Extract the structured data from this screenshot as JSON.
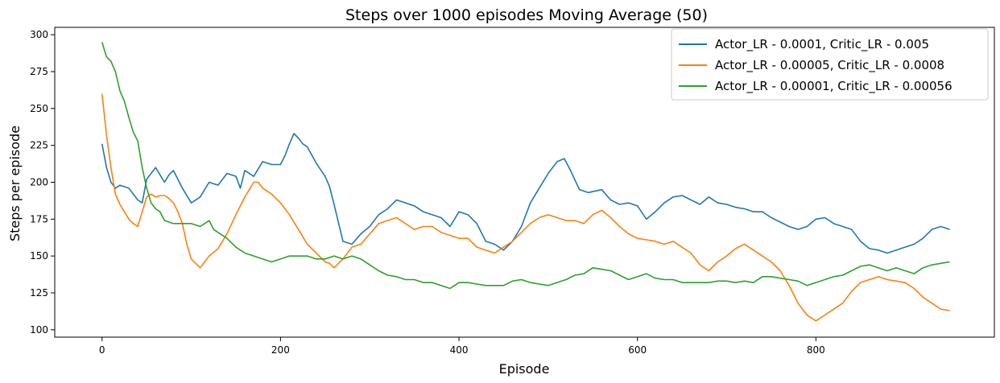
{
  "chart_data": {
    "type": "line",
    "title": "Steps over 1000 episodes Moving Average (50)",
    "xlabel": "Episode",
    "ylabel": "Steps per episode",
    "xlim": [
      -53,
      1000
    ],
    "ylim": [
      95,
      305
    ],
    "xticks": [
      0,
      200,
      400,
      600,
      800
    ],
    "yticks": [
      100,
      125,
      150,
      175,
      200,
      225,
      250,
      275,
      300
    ],
    "grid": false,
    "legend_position": "top-right",
    "series": [
      {
        "name": "Actor_LR - 0.0001, Critic_LR - 0.005",
        "color": "#1f77b4",
        "points": [
          [
            0,
            226
          ],
          [
            5,
            210
          ],
          [
            10,
            200
          ],
          [
            15,
            196
          ],
          [
            20,
            198
          ],
          [
            30,
            196
          ],
          [
            40,
            188
          ],
          [
            45,
            186
          ],
          [
            50,
            202
          ],
          [
            55,
            206
          ],
          [
            60,
            210
          ],
          [
            65,
            205
          ],
          [
            70,
            200
          ],
          [
            75,
            205
          ],
          [
            80,
            208
          ],
          [
            90,
            196
          ],
          [
            100,
            186
          ],
          [
            110,
            190
          ],
          [
            120,
            200
          ],
          [
            130,
            198
          ],
          [
            140,
            206
          ],
          [
            150,
            204
          ],
          [
            155,
            196
          ],
          [
            160,
            208
          ],
          [
            170,
            204
          ],
          [
            180,
            214
          ],
          [
            190,
            212
          ],
          [
            200,
            212
          ],
          [
            205,
            218
          ],
          [
            210,
            226
          ],
          [
            215,
            233
          ],
          [
            220,
            230
          ],
          [
            225,
            226
          ],
          [
            230,
            224
          ],
          [
            240,
            213
          ],
          [
            250,
            204
          ],
          [
            255,
            197
          ],
          [
            260,
            185
          ],
          [
            270,
            160
          ],
          [
            280,
            158
          ],
          [
            290,
            165
          ],
          [
            300,
            170
          ],
          [
            310,
            178
          ],
          [
            320,
            182
          ],
          [
            330,
            188
          ],
          [
            340,
            186
          ],
          [
            350,
            184
          ],
          [
            360,
            180
          ],
          [
            370,
            178
          ],
          [
            380,
            176
          ],
          [
            390,
            170
          ],
          [
            400,
            180
          ],
          [
            410,
            178
          ],
          [
            420,
            172
          ],
          [
            430,
            160
          ],
          [
            440,
            158
          ],
          [
            450,
            154
          ],
          [
            460,
            160
          ],
          [
            470,
            170
          ],
          [
            480,
            186
          ],
          [
            490,
            196
          ],
          [
            500,
            206
          ],
          [
            510,
            214
          ],
          [
            518,
            216
          ],
          [
            525,
            208
          ],
          [
            535,
            195
          ],
          [
            545,
            193
          ],
          [
            560,
            195
          ],
          [
            570,
            188
          ],
          [
            580,
            185
          ],
          [
            590,
            186
          ],
          [
            600,
            184
          ],
          [
            610,
            175
          ],
          [
            620,
            180
          ],
          [
            630,
            186
          ],
          [
            640,
            190
          ],
          [
            650,
            191
          ],
          [
            660,
            188
          ],
          [
            670,
            185
          ],
          [
            680,
            190
          ],
          [
            690,
            186
          ],
          [
            700,
            185
          ],
          [
            710,
            183
          ],
          [
            720,
            182
          ],
          [
            730,
            180
          ],
          [
            740,
            180
          ],
          [
            750,
            176
          ],
          [
            760,
            173
          ],
          [
            770,
            170
          ],
          [
            780,
            168
          ],
          [
            790,
            170
          ],
          [
            800,
            175
          ],
          [
            810,
            176
          ],
          [
            820,
            172
          ],
          [
            830,
            170
          ],
          [
            840,
            168
          ],
          [
            850,
            160
          ],
          [
            860,
            155
          ],
          [
            870,
            154
          ],
          [
            880,
            152
          ],
          [
            890,
            154
          ],
          [
            900,
            156
          ],
          [
            910,
            158
          ],
          [
            920,
            162
          ],
          [
            930,
            168
          ],
          [
            940,
            170
          ],
          [
            950,
            168
          ]
        ]
      },
      {
        "name": "Actor_LR - 0.00005, Critic_LR - 0.0008",
        "color": "#ff7f0e",
        "points": [
          [
            0,
            260
          ],
          [
            5,
            232
          ],
          [
            10,
            210
          ],
          [
            15,
            192
          ],
          [
            20,
            185
          ],
          [
            25,
            180
          ],
          [
            30,
            175
          ],
          [
            35,
            172
          ],
          [
            40,
            170
          ],
          [
            45,
            180
          ],
          [
            50,
            190
          ],
          [
            55,
            192
          ],
          [
            60,
            190
          ],
          [
            65,
            191
          ],
          [
            70,
            191
          ],
          [
            75,
            189
          ],
          [
            80,
            186
          ],
          [
            85,
            180
          ],
          [
            90,
            172
          ],
          [
            95,
            158
          ],
          [
            100,
            148
          ],
          [
            110,
            142
          ],
          [
            120,
            150
          ],
          [
            130,
            155
          ],
          [
            140,
            165
          ],
          [
            150,
            178
          ],
          [
            160,
            190
          ],
          [
            170,
            200
          ],
          [
            175,
            200
          ],
          [
            180,
            196
          ],
          [
            190,
            192
          ],
          [
            200,
            186
          ],
          [
            210,
            178
          ],
          [
            220,
            168
          ],
          [
            230,
            158
          ],
          [
            240,
            152
          ],
          [
            250,
            146
          ],
          [
            255,
            145
          ],
          [
            260,
            142
          ],
          [
            270,
            148
          ],
          [
            280,
            156
          ],
          [
            290,
            158
          ],
          [
            300,
            165
          ],
          [
            310,
            172
          ],
          [
            320,
            174
          ],
          [
            330,
            176
          ],
          [
            340,
            172
          ],
          [
            350,
            168
          ],
          [
            360,
            170
          ],
          [
            370,
            170
          ],
          [
            380,
            166
          ],
          [
            390,
            164
          ],
          [
            400,
            162
          ],
          [
            410,
            162
          ],
          [
            420,
            156
          ],
          [
            430,
            154
          ],
          [
            440,
            152
          ],
          [
            450,
            156
          ],
          [
            460,
            160
          ],
          [
            470,
            166
          ],
          [
            480,
            172
          ],
          [
            490,
            176
          ],
          [
            500,
            178
          ],
          [
            510,
            176
          ],
          [
            520,
            174
          ],
          [
            530,
            174
          ],
          [
            540,
            172
          ],
          [
            550,
            178
          ],
          [
            560,
            181
          ],
          [
            570,
            176
          ],
          [
            580,
            170
          ],
          [
            590,
            165
          ],
          [
            600,
            162
          ],
          [
            610,
            161
          ],
          [
            620,
            160
          ],
          [
            630,
            158
          ],
          [
            640,
            160
          ],
          [
            650,
            156
          ],
          [
            660,
            152
          ],
          [
            670,
            144
          ],
          [
            680,
            140
          ],
          [
            690,
            146
          ],
          [
            700,
            150
          ],
          [
            710,
            155
          ],
          [
            720,
            158
          ],
          [
            730,
            154
          ],
          [
            740,
            150
          ],
          [
            750,
            146
          ],
          [
            760,
            140
          ],
          [
            770,
            130
          ],
          [
            780,
            118
          ],
          [
            790,
            110
          ],
          [
            800,
            106
          ],
          [
            810,
            110
          ],
          [
            820,
            114
          ],
          [
            830,
            118
          ],
          [
            840,
            126
          ],
          [
            850,
            132
          ],
          [
            860,
            134
          ],
          [
            870,
            136
          ],
          [
            880,
            134
          ],
          [
            890,
            133
          ],
          [
            900,
            132
          ],
          [
            910,
            128
          ],
          [
            920,
            122
          ],
          [
            930,
            118
          ],
          [
            940,
            114
          ],
          [
            950,
            113
          ]
        ]
      },
      {
        "name": "Actor_LR - 0.00001, Critic_LR - 0.00056",
        "color": "#2ca02c",
        "points": [
          [
            0,
            295
          ],
          [
            5,
            285
          ],
          [
            10,
            282
          ],
          [
            15,
            275
          ],
          [
            20,
            262
          ],
          [
            25,
            255
          ],
          [
            30,
            244
          ],
          [
            35,
            234
          ],
          [
            40,
            228
          ],
          [
            45,
            210
          ],
          [
            50,
            196
          ],
          [
            55,
            186
          ],
          [
            60,
            182
          ],
          [
            65,
            180
          ],
          [
            70,
            174
          ],
          [
            80,
            172
          ],
          [
            90,
            172
          ],
          [
            100,
            172
          ],
          [
            110,
            170
          ],
          [
            120,
            174
          ],
          [
            125,
            168
          ],
          [
            130,
            166
          ],
          [
            140,
            162
          ],
          [
            150,
            156
          ],
          [
            160,
            152
          ],
          [
            170,
            150
          ],
          [
            180,
            148
          ],
          [
            190,
            146
          ],
          [
            200,
            148
          ],
          [
            210,
            150
          ],
          [
            220,
            150
          ],
          [
            230,
            150
          ],
          [
            240,
            148
          ],
          [
            250,
            148
          ],
          [
            260,
            150
          ],
          [
            270,
            148
          ],
          [
            280,
            150
          ],
          [
            290,
            148
          ],
          [
            300,
            144
          ],
          [
            310,
            140
          ],
          [
            320,
            137
          ],
          [
            330,
            136
          ],
          [
            340,
            134
          ],
          [
            350,
            134
          ],
          [
            360,
            132
          ],
          [
            370,
            132
          ],
          [
            380,
            130
          ],
          [
            390,
            128
          ],
          [
            400,
            132
          ],
          [
            410,
            132
          ],
          [
            420,
            131
          ],
          [
            430,
            130
          ],
          [
            440,
            130
          ],
          [
            450,
            130
          ],
          [
            460,
            133
          ],
          [
            470,
            134
          ],
          [
            480,
            132
          ],
          [
            490,
            131
          ],
          [
            500,
            130
          ],
          [
            510,
            132
          ],
          [
            520,
            134
          ],
          [
            530,
            137
          ],
          [
            540,
            138
          ],
          [
            550,
            142
          ],
          [
            560,
            141
          ],
          [
            570,
            140
          ],
          [
            580,
            137
          ],
          [
            590,
            134
          ],
          [
            600,
            136
          ],
          [
            610,
            138
          ],
          [
            620,
            135
          ],
          [
            630,
            134
          ],
          [
            640,
            134
          ],
          [
            650,
            132
          ],
          [
            660,
            132
          ],
          [
            670,
            132
          ],
          [
            680,
            132
          ],
          [
            690,
            133
          ],
          [
            700,
            133
          ],
          [
            710,
            132
          ],
          [
            720,
            133
          ],
          [
            730,
            132
          ],
          [
            740,
            136
          ],
          [
            750,
            136
          ],
          [
            760,
            135
          ],
          [
            770,
            134
          ],
          [
            780,
            133
          ],
          [
            790,
            130
          ],
          [
            800,
            132
          ],
          [
            810,
            134
          ],
          [
            820,
            136
          ],
          [
            830,
            137
          ],
          [
            840,
            140
          ],
          [
            850,
            143
          ],
          [
            860,
            144
          ],
          [
            870,
            142
          ],
          [
            880,
            140
          ],
          [
            890,
            142
          ],
          [
            900,
            140
          ],
          [
            910,
            138
          ],
          [
            920,
            142
          ],
          [
            930,
            144
          ],
          [
            940,
            145
          ],
          [
            950,
            146
          ]
        ]
      }
    ]
  }
}
